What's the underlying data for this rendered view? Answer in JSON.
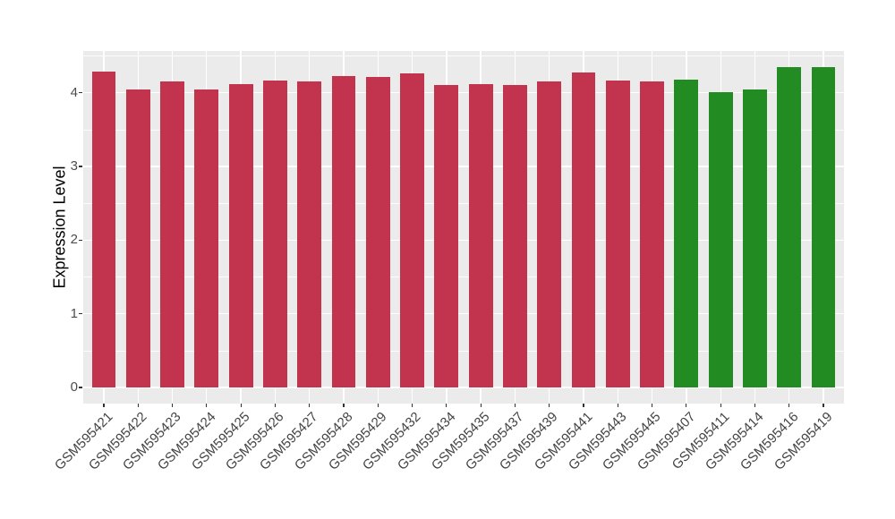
{
  "chart_data": {
    "type": "bar",
    "title": "",
    "xlabel": "",
    "ylabel": "Expression Level",
    "categories": [
      "GSM595421",
      "GSM595422",
      "GSM595423",
      "GSM595424",
      "GSM595425",
      "GSM595426",
      "GSM595427",
      "GSM595428",
      "GSM595429",
      "GSM595432",
      "GSM595434",
      "GSM595435",
      "GSM595437",
      "GSM595439",
      "GSM595441",
      "GSM595443",
      "GSM595445",
      "GSM595407",
      "GSM595411",
      "GSM595414",
      "GSM595416",
      "GSM595419"
    ],
    "values": [
      4.29,
      4.05,
      4.15,
      4.05,
      4.12,
      4.17,
      4.15,
      4.23,
      4.22,
      4.26,
      4.1,
      4.12,
      4.11,
      4.15,
      4.28,
      4.17,
      4.16,
      4.18,
      4.01,
      4.05,
      4.35,
      4.35
    ],
    "bar_colors": [
      "#C2334D",
      "#C2334D",
      "#C2334D",
      "#C2334D",
      "#C2334D",
      "#C2334D",
      "#C2334D",
      "#C2334D",
      "#C2334D",
      "#C2334D",
      "#C2334D",
      "#C2334D",
      "#C2334D",
      "#C2334D",
      "#C2334D",
      "#C2334D",
      "#C2334D",
      "#228B22",
      "#228B22",
      "#228B22",
      "#228B22",
      "#228B22"
    ],
    "yticks": [
      0,
      1,
      2,
      3,
      4
    ],
    "yminor": [
      0.5,
      1.5,
      2.5,
      3.5,
      4.5
    ],
    "ylim": [
      0,
      4.35
    ],
    "grid": "on",
    "legend": "none",
    "style": {
      "panel_background": "#EBEBEB",
      "gridline_color": "#FFFFFF",
      "tick_color": "#333333",
      "axis_text_color": "#4D4D4D",
      "red_bar_color": "#C2334D",
      "green_bar_color": "#228B22"
    }
  }
}
